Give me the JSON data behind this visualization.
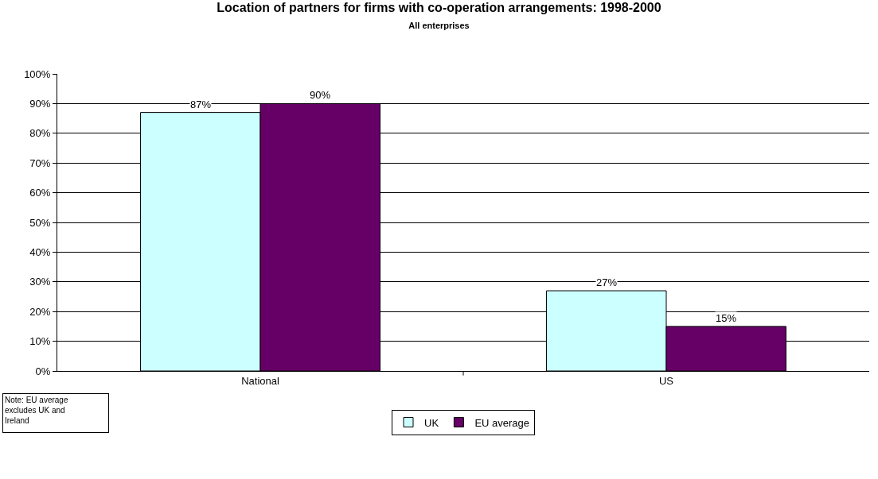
{
  "chart_data": {
    "type": "bar",
    "title": "Location of partners for firms with co-operation arrangements: 1998-2000",
    "subtitle": "All enterprises",
    "categories": [
      "National",
      "US"
    ],
    "series": [
      {
        "name": "UK",
        "color": "#ccffff",
        "values": [
          87,
          27
        ],
        "value_labels": [
          "87%",
          "27%"
        ]
      },
      {
        "name": "EU average",
        "color": "#660066",
        "values": [
          90,
          15
        ],
        "value_labels": [
          "90%",
          "15%"
        ]
      }
    ],
    "ylim": [
      0,
      100
    ],
    "yticks": [
      {
        "value": 0,
        "label": "0%"
      },
      {
        "value": 10,
        "label": "10%"
      },
      {
        "value": 20,
        "label": "20%"
      },
      {
        "value": 30,
        "label": "30%"
      },
      {
        "value": 40,
        "label": "40%"
      },
      {
        "value": 50,
        "label": "50%"
      },
      {
        "value": 60,
        "label": "60%"
      },
      {
        "value": 70,
        "label": "70%"
      },
      {
        "value": 80,
        "label": "80%"
      },
      {
        "value": 90,
        "label": "90%"
      },
      {
        "value": 100,
        "label": "100%"
      }
    ],
    "grid": "y",
    "legend": "bottom",
    "annotations": [
      "Note: EU average excludes UK and Ireland"
    ]
  }
}
